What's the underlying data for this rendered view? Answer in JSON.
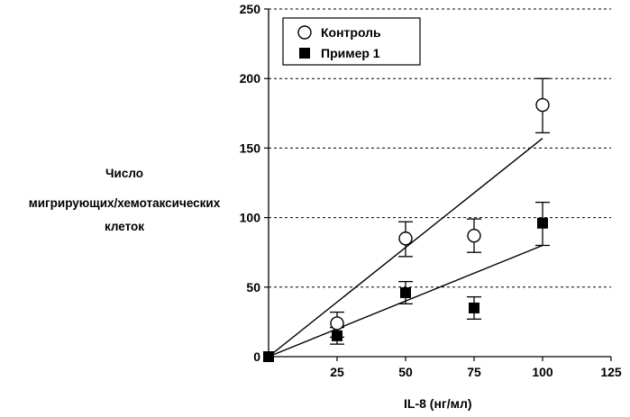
{
  "chart_data": {
    "type": "scatter",
    "xlabel": "IL-8 (нг/мл)",
    "ylabel_lines": [
      "Число",
      "мигрирующих/хемотаксических",
      "клеток"
    ],
    "xlim": [
      0,
      125
    ],
    "ylim": [
      0,
      250
    ],
    "x_ticks": [
      25,
      50,
      75,
      100,
      125
    ],
    "y_ticks": [
      0,
      50,
      100,
      150,
      200,
      250
    ],
    "grid": "horizontal-dashed",
    "legend_position": "top-left",
    "series": [
      {
        "name": "Контроль",
        "marker": "open-circle",
        "points": [
          {
            "x": 25,
            "y": 24,
            "err_low": 14,
            "err_high": 32
          },
          {
            "x": 50,
            "y": 85,
            "err_low": 72,
            "err_high": 97
          },
          {
            "x": 75,
            "y": 87,
            "err_low": 75,
            "err_high": 99
          },
          {
            "x": 100,
            "y": 181,
            "err_low": 161,
            "err_high": 200
          }
        ],
        "trendline": {
          "x": [
            0,
            100
          ],
          "y": [
            0,
            157
          ]
        }
      },
      {
        "name": "Пример 1",
        "marker": "filled-square",
        "points": [
          {
            "x": 0,
            "y": 0
          },
          {
            "x": 25,
            "y": 15,
            "err_low": 9,
            "err_high": 21
          },
          {
            "x": 50,
            "y": 46,
            "err_low": 38,
            "err_high": 54
          },
          {
            "x": 75,
            "y": 35,
            "err_low": 27,
            "err_high": 43
          },
          {
            "x": 100,
            "y": 96,
            "err_low": 80,
            "err_high": 111
          }
        ],
        "trendline": {
          "x": [
            0,
            100
          ],
          "y": [
            0,
            80
          ]
        }
      }
    ],
    "colors": {
      "axis": "#000000",
      "grid": "#000000",
      "marker": "#000000",
      "background": "#ffffff"
    }
  }
}
